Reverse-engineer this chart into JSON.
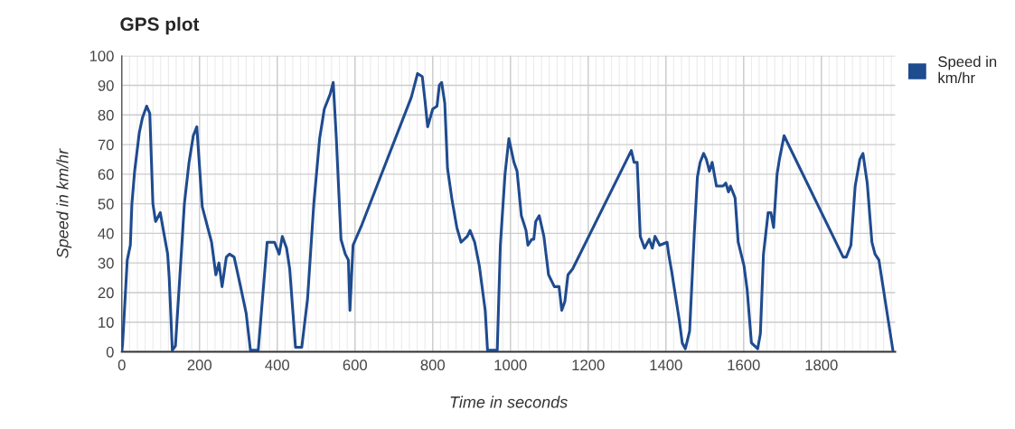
{
  "chart_data": {
    "type": "line",
    "title": "GPS plot",
    "xlabel": "Time in seconds",
    "ylabel": "Speed in km/hr",
    "xlim": [
      0,
      1990
    ],
    "xticks": [
      0,
      200,
      400,
      600,
      800,
      1000,
      1200,
      1400,
      1600,
      1800
    ],
    "ylim": [
      0,
      100
    ],
    "yticks": [
      0,
      10,
      20,
      30,
      40,
      50,
      60,
      70,
      80,
      90,
      100
    ],
    "grid": true,
    "legend": "right",
    "marker": "none",
    "line_style": "solid",
    "series": [
      {
        "name": "Speed in km/hr",
        "color": "#1f4b8f",
        "x": [
          0,
          2,
          14,
          22,
          26,
          33,
          45,
          53,
          64,
          72,
          80,
          87,
          99,
          107,
          118,
          122,
          130,
          138,
          153,
          161,
          173,
          184,
          193,
          207,
          231,
          242,
          250,
          258,
          269,
          277,
          289,
          304,
          320,
          331,
          351,
          374,
          393,
          405,
          413,
          424,
          432,
          447,
          463,
          478,
          494,
          509,
          521,
          536,
          544,
          552,
          564,
          575,
          583,
          587,
          595,
          618,
          745,
          761,
          773,
          780,
          787,
          800,
          811,
          817,
          823,
          831,
          838,
          850,
          862,
          873,
          889,
          896,
          908,
          920,
          935,
          941,
          966,
          974,
          986,
          996,
          1009,
          1017,
          1028,
          1040,
          1045,
          1055,
          1060,
          1065,
          1074,
          1086,
          1098,
          1113,
          1125,
          1132,
          1140,
          1148,
          1160,
          1311,
          1318,
          1326,
          1334,
          1345,
          1357,
          1365,
          1372,
          1384,
          1403,
          1407,
          1415,
          1434,
          1442,
          1450,
          1461,
          1473,
          1481,
          1488,
          1497,
          1504,
          1512,
          1519,
          1530,
          1547,
          1554,
          1561,
          1566,
          1578,
          1586,
          1601,
          1609,
          1620,
          1636,
          1643,
          1651,
          1663,
          1670,
          1677,
          1686,
          1692,
          1704,
          1856,
          1864,
          1876,
          1887,
          1899,
          1907,
          1918,
          1930,
          1938,
          1948,
          1984
        ],
        "values": [
          0,
          2.5,
          31,
          36,
          50,
          61,
          74,
          79,
          83,
          80.5,
          50,
          44,
          47,
          41,
          33,
          25,
          0.5,
          2,
          33,
          50,
          64,
          73,
          76,
          49,
          37,
          26,
          30,
          22,
          32,
          33,
          32,
          23,
          13,
          0.5,
          0.5,
          37,
          37,
          33,
          39,
          35,
          28,
          1.5,
          1.5,
          18,
          50,
          72,
          82,
          87,
          91,
          72,
          38,
          33,
          31,
          14,
          36,
          43,
          86,
          94,
          93,
          85,
          76,
          82,
          83,
          90,
          91,
          84,
          62,
          51,
          42,
          37,
          39,
          41,
          37,
          29,
          14,
          0.5,
          0.5,
          36,
          60,
          72,
          64,
          61,
          46,
          41,
          36,
          38,
          38,
          44,
          46,
          39,
          26,
          22,
          22,
          14,
          17,
          26,
          28,
          68,
          64,
          64,
          39,
          35,
          38,
          35,
          39,
          36,
          37,
          33,
          27,
          11,
          3,
          1,
          7,
          40,
          59,
          64,
          67,
          65,
          61,
          64,
          56,
          56,
          57,
          54,
          56,
          52,
          37,
          29,
          21,
          3,
          1,
          6,
          33,
          47,
          47,
          42,
          60,
          65,
          73,
          32,
          32,
          36,
          56,
          65,
          67,
          57,
          37,
          33,
          31,
          0.5
        ]
      }
    ]
  }
}
